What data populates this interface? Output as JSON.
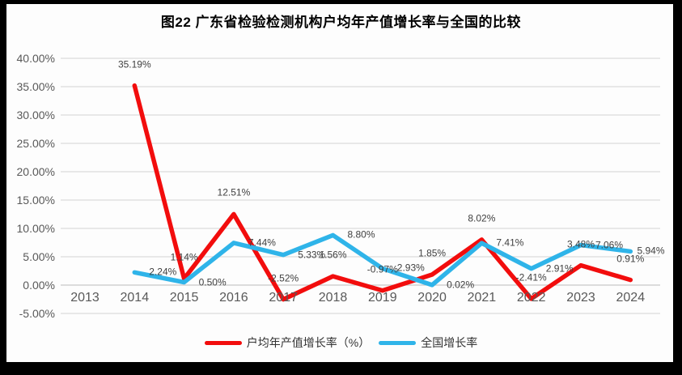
{
  "window": {
    "frame_color": "#000000",
    "paper_color": "#fdfdfd"
  },
  "title": "图22  广东省检验检测机构户均年产值增长率与全国的比较",
  "legend": [
    {
      "label": "户均年产值增长率（%）",
      "color": "#f20d0d"
    },
    {
      "label": "全国增长率",
      "color": "#2fb4e9"
    }
  ],
  "chart_data": {
    "type": "line",
    "title": "图22  广东省检验检测机构户均年产值增长率与全国的比较",
    "categories": [
      "2013",
      "2014",
      "2015",
      "2016",
      "2017",
      "2018",
      "2019",
      "2020",
      "2021",
      "2022",
      "2023",
      "2024"
    ],
    "series": [
      {
        "name": "户均年产值增长率（%）",
        "color": "#f20d0d",
        "label_placement": "above",
        "values": [
          null,
          35.19,
          1.14,
          12.51,
          -2.52,
          1.56,
          -0.97,
          1.85,
          8.02,
          -2.41,
          3.48,
          0.91
        ],
        "labels": [
          "",
          "35.19%",
          "1.14%",
          "12.51%",
          "-2.52%",
          "1.56%",
          "-0.97%",
          "1.85%",
          "8.02%",
          "-2.41%",
          "3.48%",
          "0.91%"
        ]
      },
      {
        "name": "全国增长率",
        "color": "#2fb4e9",
        "label_placement": "right",
        "values": [
          null,
          2.24,
          0.5,
          7.44,
          5.33,
          8.8,
          2.93,
          0.02,
          7.41,
          2.91,
          7.06,
          5.94
        ],
        "labels": [
          "",
          "2.24%",
          "0.50%",
          "7.44%",
          "5.33%",
          "8.80%",
          "2.93%",
          "0.02%",
          "7.41%",
          "2.91%",
          "7.06%",
          "5.94%"
        ]
      }
    ],
    "xlabel": "",
    "ylabel": "",
    "ylim": [
      -5,
      40
    ],
    "ytick_step": 5,
    "ytick_labels": [
      "40.00%",
      "35.00%",
      "30.00%",
      "25.00%",
      "20.00%",
      "15.00%",
      "10.00%",
      "5.00%",
      "0.00%",
      "-5.00%"
    ],
    "value_format": "0.00%",
    "grid": true,
    "legend_position": "bottom",
    "colors": {
      "grid_line": "#dcdcdc",
      "zero_line": "#c9c9c9",
      "axis_tick_text": "#595959",
      "data_label_text": "#404040",
      "title_text": "#000000"
    }
  }
}
